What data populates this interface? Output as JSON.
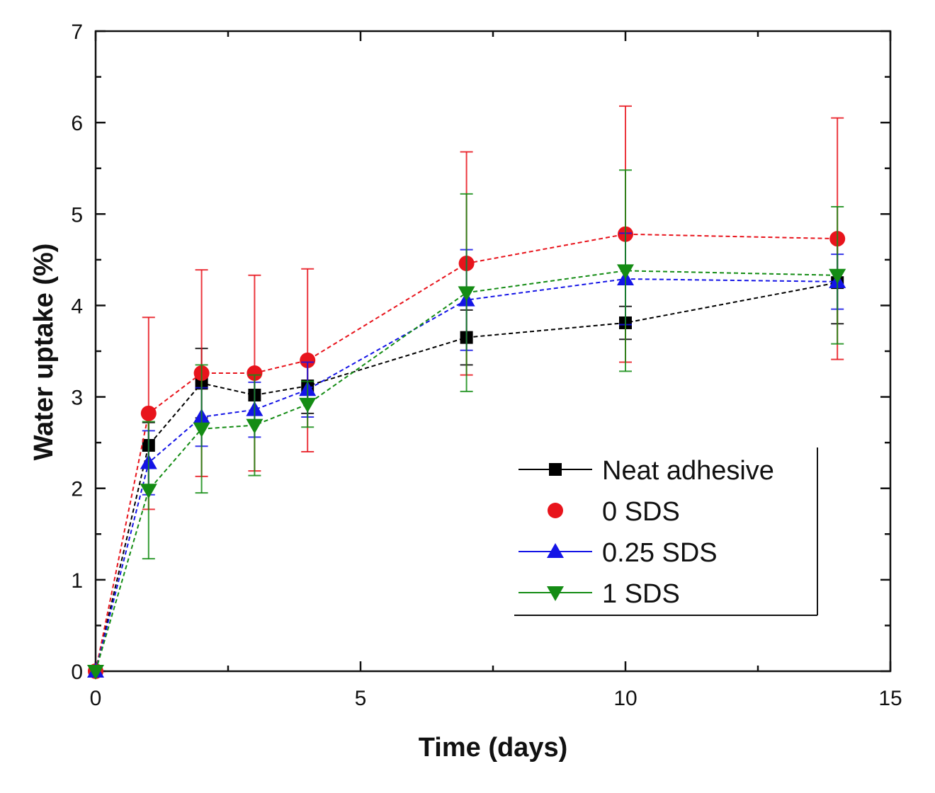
{
  "chart_data": {
    "type": "line",
    "title": "",
    "xlabel": "Time (days)",
    "ylabel": "Water uptake (%)",
    "xlim": [
      0,
      15
    ],
    "ylim": [
      0,
      7
    ],
    "xticks": [
      0,
      5,
      10,
      15
    ],
    "yticks": [
      0,
      1,
      2,
      3,
      4,
      5,
      6,
      7
    ],
    "x": [
      0,
      1,
      2,
      3,
      4,
      7,
      10,
      14
    ],
    "legend_position": "bottom-right",
    "series": [
      {
        "name": "Neat adhesive",
        "color": "#000000",
        "marker": "square",
        "values": [
          0,
          2.47,
          3.15,
          3.02,
          3.12,
          3.65,
          3.81,
          4.25
        ],
        "errors": [
          0,
          0.25,
          0.38,
          0.2,
          0.3,
          0.3,
          0.18,
          0.45
        ]
      },
      {
        "name": "0 SDS",
        "color": "#e8141c",
        "marker": "circle",
        "values": [
          0,
          2.82,
          3.26,
          3.26,
          3.4,
          4.46,
          4.78,
          4.73
        ],
        "errors": [
          0,
          1.05,
          1.13,
          1.07,
          1.0,
          1.22,
          1.4,
          1.32
        ]
      },
      {
        "name": "0.25 SDS",
        "color": "#1414e6",
        "marker": "triangle-up",
        "values": [
          0,
          2.28,
          2.78,
          2.86,
          3.08,
          4.06,
          4.29,
          4.26
        ],
        "errors": [
          0,
          0.35,
          0.32,
          0.3,
          0.3,
          0.55,
          0.5,
          0.3
        ]
      },
      {
        "name": "1 SDS",
        "color": "#148c14",
        "marker": "triangle-down",
        "values": [
          0,
          1.98,
          2.65,
          2.69,
          2.92,
          4.14,
          4.38,
          4.33
        ],
        "errors": [
          0,
          0.75,
          0.7,
          0.55,
          0.25,
          1.08,
          1.1,
          0.75
        ]
      }
    ]
  }
}
